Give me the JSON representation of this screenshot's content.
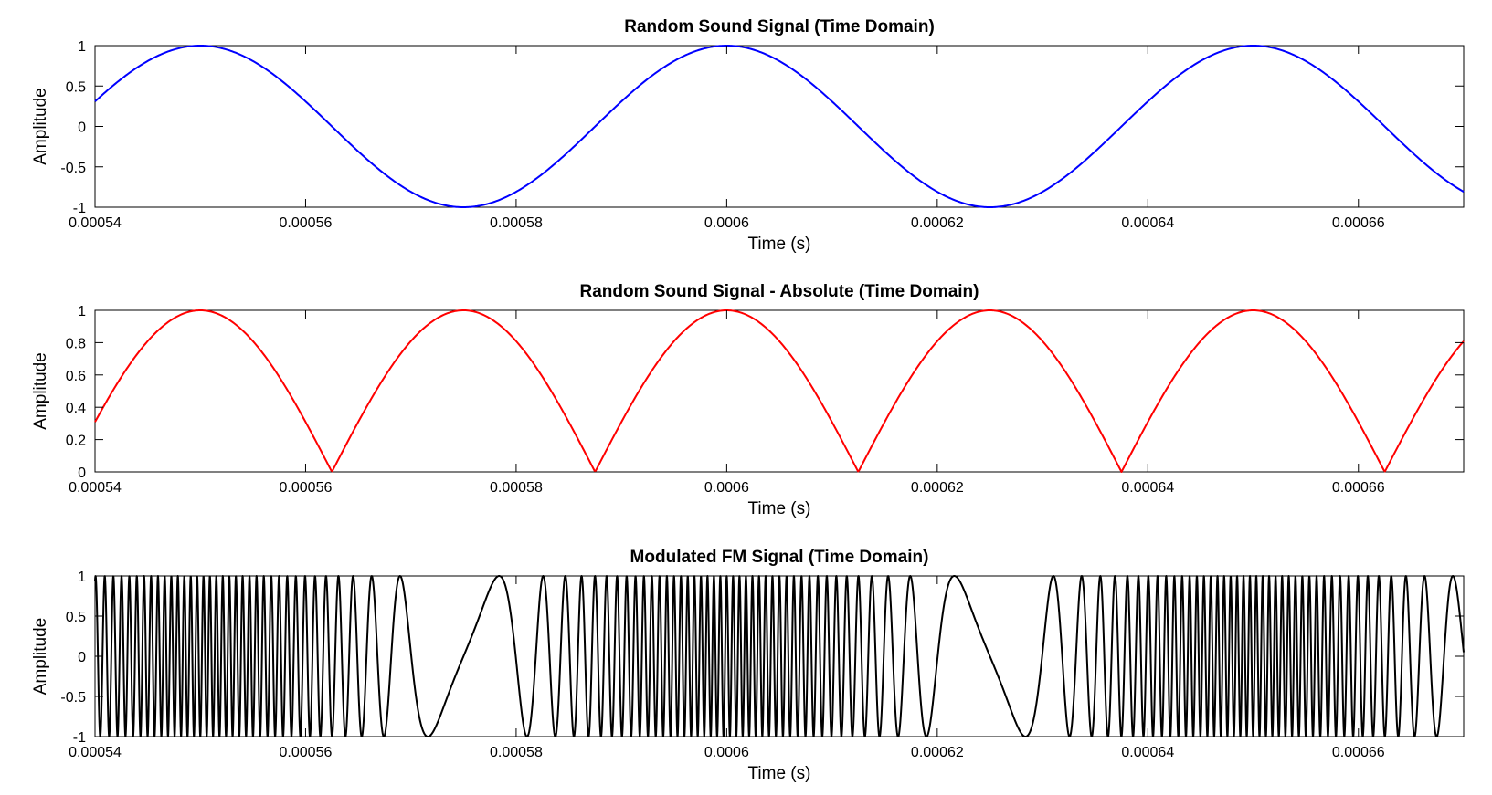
{
  "chart_data": [
    {
      "type": "line",
      "title": "Random Sound Signal (Time Domain)",
      "xlabel": "Time (s)",
      "ylabel": "Amplitude",
      "xlim": [
        0.00054,
        0.00067
      ],
      "ylim": [
        -1,
        1
      ],
      "xticks": [
        "0.00054",
        "0.00056",
        "0.00058",
        "0.0006",
        "0.00062",
        "0.00064",
        "0.00066"
      ],
      "xtick_values": [
        0.00054,
        0.00056,
        0.00058,
        0.0006,
        0.00062,
        0.00064,
        0.00066
      ],
      "yticks": [
        "1",
        "0.5",
        "0",
        "-0.5",
        "-1"
      ],
      "ytick_values": [
        1,
        0.5,
        0,
        -0.5,
        -1
      ],
      "grid": false,
      "color": "#0000ff",
      "series": [
        {
          "formula": "cos(2*pi*f*(t - t_peak))",
          "f": 20000,
          "t_peak": 0.00055,
          "x_range": [
            0.00054,
            0.00067
          ]
        }
      ]
    },
    {
      "type": "line",
      "title": "Random Sound Signal - Absolute (Time Domain)",
      "xlabel": "Time (s)",
      "ylabel": "Amplitude",
      "xlim": [
        0.00054,
        0.00067
      ],
      "ylim": [
        0,
        1
      ],
      "xticks": [
        "0.00054",
        "0.00056",
        "0.00058",
        "0.0006",
        "0.00062",
        "0.00064",
        "0.00066"
      ],
      "xtick_values": [
        0.00054,
        0.00056,
        0.00058,
        0.0006,
        0.00062,
        0.00064,
        0.00066
      ],
      "yticks": [
        "1",
        "0.8",
        "0.6",
        "0.4",
        "0.2",
        "0"
      ],
      "ytick_values": [
        1,
        0.8,
        0.6,
        0.4,
        0.2,
        0
      ],
      "grid": false,
      "color": "#ff0000",
      "series": [
        {
          "formula": "|cos(2*pi*f*(t - t_peak))|",
          "f": 20000,
          "t_peak": 0.00055,
          "x_range": [
            0.00054,
            0.00067
          ]
        }
      ]
    },
    {
      "type": "line",
      "title": "Modulated FM Signal (Time Domain)",
      "xlabel": "Time (s)",
      "ylabel": "Amplitude",
      "xlim": [
        0.00054,
        0.00067
      ],
      "ylim": [
        -1,
        1
      ],
      "xticks": [
        "0.00054",
        "0.00056",
        "0.00058",
        "0.0006",
        "0.00062",
        "0.00064",
        "0.00066"
      ],
      "xtick_values": [
        0.00054,
        0.00056,
        0.00058,
        0.0006,
        0.00062,
        0.00064,
        0.00066
      ],
      "yticks": [
        "1",
        "0.5",
        "0",
        "-0.5",
        "-1"
      ],
      "ytick_values": [
        1,
        0.5,
        0,
        -0.5,
        -1
      ],
      "grid": false,
      "color": "#000000",
      "series": [
        {
          "formula": "cos(phase(t)), FM of the sound signal",
          "carrier_hz": 850000,
          "deviation_hz": 800000,
          "message_f": 20000,
          "message_t_peak": 0.00055,
          "x_range": [
            0.00054,
            0.00067
          ]
        }
      ]
    }
  ]
}
